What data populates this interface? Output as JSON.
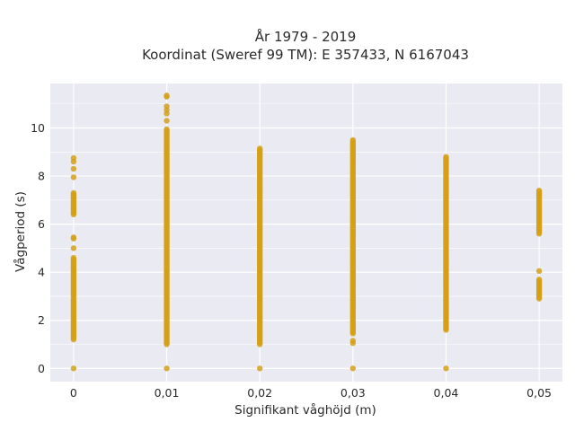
{
  "chart_data": {
    "type": "scatter",
    "title_lines": [
      "År 1979 - 2019",
      "Koordinat (Sweref 99 TM): E 357433, N 6167043"
    ],
    "xlabel": "Signifikant våghöjd (m)",
    "ylabel": "Vågperiod (s)",
    "xlim": [
      -0.0025,
      0.0525
    ],
    "ylim": [
      -0.55,
      11.85
    ],
    "xticks": [
      0,
      0.01,
      0.02,
      0.03,
      0.04,
      0.05
    ],
    "xtick_labels": [
      "0",
      "0,01",
      "0,02",
      "0,03",
      "0,04",
      "0,05"
    ],
    "yticks": [
      0,
      2,
      4,
      6,
      8,
      10
    ],
    "ytick_labels": [
      "0",
      "2",
      "4",
      "6",
      "8",
      "10"
    ],
    "grid": true,
    "colors": {
      "background": "#eaeaf2",
      "grid": "#ffffff",
      "marker": "#d4a017"
    },
    "series": [
      {
        "columns": [
          {
            "x": 0,
            "ranges": [
              [
                1.2,
                2.9
              ],
              [
                3.0,
                4.6
              ],
              [
                6.4,
                7.3
              ]
            ],
            "points": [
              0,
              5.0,
              5.4,
              5.45,
              7.95,
              8.3,
              8.6,
              8.75
            ]
          },
          {
            "x": 0.01,
            "ranges": [
              [
                1.0,
                9.95
              ]
            ],
            "points": [
              0,
              10.3,
              10.6,
              10.75,
              10.9,
              11.3,
              11.35
            ]
          },
          {
            "x": 0.02,
            "ranges": [
              [
                1.0,
                9.15
              ]
            ],
            "points": [
              0
            ]
          },
          {
            "x": 0.03,
            "ranges": [
              [
                1.45,
                9.5
              ]
            ],
            "points": [
              0,
              1.05,
              1.15
            ]
          },
          {
            "x": 0.04,
            "ranges": [
              [
                1.6,
                8.8
              ]
            ],
            "points": [
              0
            ]
          },
          {
            "x": 0.05,
            "ranges": [
              [
                2.9,
                3.7
              ],
              [
                5.6,
                7.4
              ]
            ],
            "points": [
              4.05
            ]
          }
        ]
      }
    ]
  }
}
